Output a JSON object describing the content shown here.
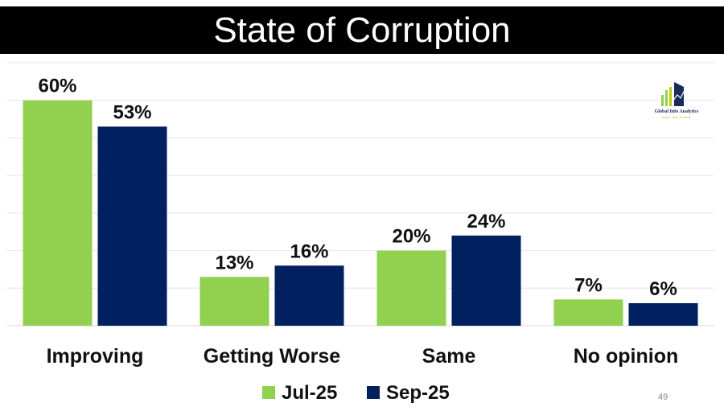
{
  "title": "State of Corruption",
  "page_number": "49",
  "logo": {
    "name": "Global Info Analytics",
    "tagline": "Insight  ·  Data  ·  Decisions"
  },
  "colors": {
    "jul": "#92d050",
    "sep": "#002060",
    "title_bg": "#000000",
    "grid": "#e6e6e6"
  },
  "chart_data": {
    "type": "bar",
    "categories": [
      "Improving",
      "Getting Worse",
      "Same",
      "No opinion"
    ],
    "series": [
      {
        "name": "Jul-25",
        "values": [
          60,
          13,
          20,
          7
        ],
        "labels": [
          "60%",
          "13%",
          "20%",
          "7%"
        ]
      },
      {
        "name": "Sep-25",
        "values": [
          53,
          16,
          24,
          6
        ],
        "labels": [
          "53%",
          "16%",
          "24%",
          "6%"
        ]
      }
    ],
    "ylim": [
      0,
      70
    ],
    "grid": true,
    "legend": "bottom"
  }
}
